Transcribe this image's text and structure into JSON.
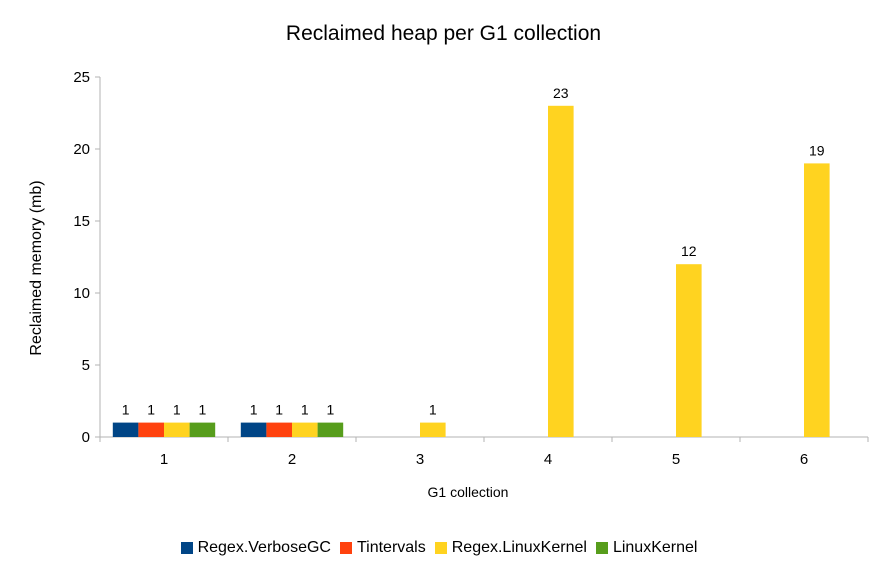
{
  "chart_data": {
    "type": "bar",
    "title": "Reclaimed heap per G1 collection",
    "xlabel": "G1 collection",
    "ylabel": "Reclaimed memory (mb)",
    "categories": [
      "1",
      "2",
      "3",
      "4",
      "5",
      "6"
    ],
    "ylim": [
      0,
      25
    ],
    "yticks": [
      0,
      5,
      10,
      15,
      20,
      25
    ],
    "grid": false,
    "legend_position": "bottom",
    "series": [
      {
        "name": "Regex.VerboseGC",
        "color": "#004586",
        "values": [
          1,
          1,
          null,
          null,
          null,
          null
        ]
      },
      {
        "name": "Tintervals",
        "color": "#ff420e",
        "values": [
          1,
          1,
          null,
          null,
          null,
          null
        ]
      },
      {
        "name": "Regex.LinuxKernel",
        "color": "#ffd320",
        "values": [
          1,
          1,
          1,
          23,
          12,
          19
        ]
      },
      {
        "name": "LinuxKernel",
        "color": "#579d1c",
        "values": [
          1,
          1,
          null,
          null,
          null,
          null
        ]
      }
    ]
  }
}
